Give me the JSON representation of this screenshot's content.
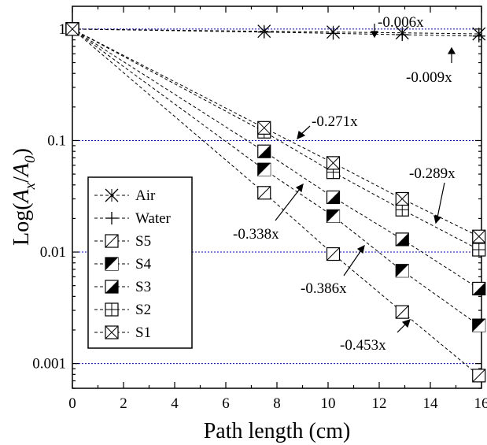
{
  "chart_data": {
    "type": "scatter",
    "xlabel": "Path length (cm)",
    "ylabel_parts": [
      "Log(",
      "A",
      "x",
      "/",
      "A",
      "0",
      ")"
    ],
    "xlim": [
      0,
      16
    ],
    "ylim": [
      0.0006,
      1.6
    ],
    "yscale": "log",
    "x_ticks": [
      "0",
      "2",
      "4",
      "6",
      "8",
      "10",
      "12",
      "14",
      "16"
    ],
    "y_ticks": [
      {
        "value": 1,
        "label": "1"
      },
      {
        "value": 0.1,
        "label": "0.1"
      },
      {
        "value": 0.01,
        "label": "0.01"
      },
      {
        "value": 0.001,
        "label": "0.001"
      }
    ],
    "grid": "horizontal dotted lines at 1, 0.1, 0.01, 0.001",
    "legend_position": "lower-left",
    "colors": {
      "grid": "#0000cc",
      "marker": "#000000",
      "fit_line": "#000000"
    },
    "series": [
      {
        "name": "Air",
        "marker": "x",
        "x": [
          0,
          7.5,
          10.2,
          12.9,
          15.9
        ],
        "y": [
          1,
          0.955,
          0.94,
          0.925,
          0.905
        ],
        "fit": "-0.006x"
      },
      {
        "name": "Water",
        "marker": "plus",
        "x": [
          0,
          7.5,
          10.2,
          12.9,
          15.9
        ],
        "y": [
          1,
          0.94,
          0.915,
          0.89,
          0.865
        ],
        "fit": "-0.009x"
      },
      {
        "name": "S5",
        "marker": "square-diag",
        "x": [
          0,
          7.5,
          10.2,
          12.9,
          15.9
        ],
        "y": [
          1,
          0.034,
          0.0096,
          0.0029,
          0.00078
        ],
        "fit": "-0.453x"
      },
      {
        "name": "S4",
        "marker": "square-half-lower",
        "x": [
          0,
          7.5,
          10.2,
          12.9,
          15.9
        ],
        "y": [
          1,
          0.055,
          0.021,
          0.0068,
          0.0022
        ],
        "fit": "-0.386x"
      },
      {
        "name": "S3",
        "marker": "square-half-upper",
        "x": [
          0,
          7.5,
          10.2,
          12.9,
          15.9
        ],
        "y": [
          1,
          0.08,
          0.031,
          0.013,
          0.0047
        ],
        "fit": "-0.338x"
      },
      {
        "name": "S2",
        "marker": "square-grid",
        "x": [
          0,
          7.5,
          10.2,
          12.9,
          15.9
        ],
        "y": [
          1,
          0.12,
          0.052,
          0.024,
          0.0105
        ],
        "fit": "-0.289x"
      },
      {
        "name": "S1",
        "marker": "square-x",
        "x": [
          0,
          7.5,
          10.2,
          12.9,
          15.9
        ],
        "y": [
          1,
          0.13,
          0.063,
          0.03,
          0.0138
        ],
        "fit": "-0.271x"
      }
    ],
    "annotations": [
      "-0.006x",
      "-0.009x",
      "-0.271x",
      "-0.289x",
      "-0.338x",
      "-0.386x",
      "-0.453x"
    ]
  }
}
